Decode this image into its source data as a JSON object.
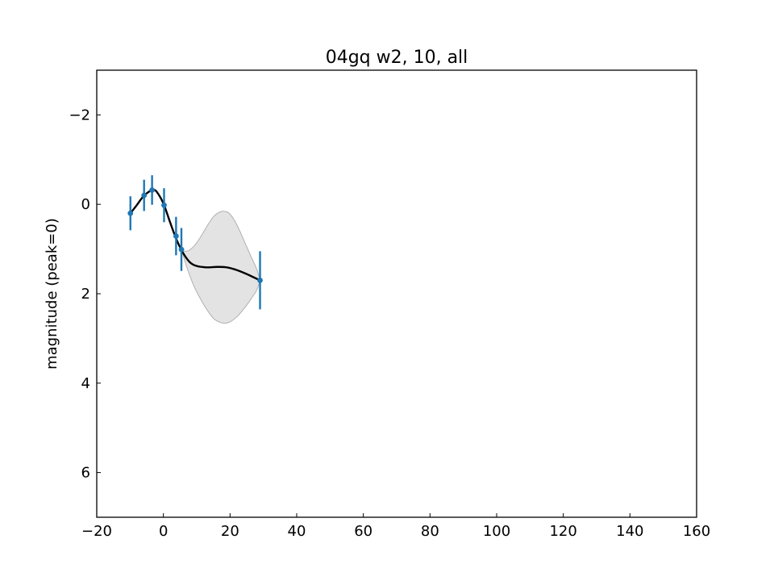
{
  "chart_data": {
    "type": "line",
    "title": "04gq w2, 10, all",
    "xlabel": "",
    "ylabel": "magnitude (peak=0)",
    "xlim": [
      -20,
      160
    ],
    "ylim": [
      7,
      -3
    ],
    "y_inverted": true,
    "grid": false,
    "xticks": [
      -20,
      0,
      20,
      40,
      60,
      80,
      100,
      120,
      140,
      160
    ],
    "xtick_labels": [
      "−20",
      "0",
      "20",
      "40",
      "60",
      "80",
      "100",
      "120",
      "140",
      "160"
    ],
    "yticks": [
      -2,
      0,
      2,
      4,
      6
    ],
    "ytick_labels": [
      "−2",
      "0",
      "2",
      "4",
      "6"
    ],
    "colors": {
      "points": "#1f77b4",
      "fit": "#000000",
      "band": "#b0b0b0"
    },
    "series": [
      {
        "type": "errorbar",
        "x": [
          -9.9,
          -5.8,
          -3.4,
          0.2,
          3.8,
          5.4,
          29.0
        ],
        "y": [
          0.2,
          -0.2,
          -0.32,
          0.02,
          0.71,
          1.01,
          1.7
        ],
        "yerr": [
          0.38,
          0.35,
          0.33,
          0.38,
          0.43,
          0.48,
          0.65
        ]
      },
      {
        "type": "line",
        "x": [
          -9.9,
          -8.0,
          -6.0,
          -4.0,
          -3.0,
          -2.0,
          0.0,
          2.0,
          4.0,
          6.0,
          8.0,
          10.0,
          13.0,
          16.0,
          19.0,
          22.0,
          25.0,
          27.0,
          29.0
        ],
        "y": [
          0.2,
          0.02,
          -0.18,
          -0.3,
          -0.32,
          -0.28,
          -0.02,
          0.4,
          0.8,
          1.1,
          1.3,
          1.38,
          1.41,
          1.4,
          1.41,
          1.47,
          1.56,
          1.63,
          1.7
        ]
      },
      {
        "type": "band",
        "x": [
          5.4,
          7.0,
          9.0,
          11.0,
          13.0,
          15.0,
          17.0,
          18.5,
          20.0,
          22.0,
          24.0,
          26.0,
          28.0,
          29.0
        ],
        "y_upper": [
          1.01,
          1.05,
          0.95,
          0.75,
          0.5,
          0.28,
          0.17,
          0.16,
          0.22,
          0.45,
          0.78,
          1.12,
          1.45,
          1.7
        ],
        "y_lower": [
          1.01,
          1.4,
          1.8,
          2.1,
          2.35,
          2.55,
          2.64,
          2.66,
          2.63,
          2.52,
          2.35,
          2.15,
          1.92,
          1.7
        ]
      }
    ]
  }
}
